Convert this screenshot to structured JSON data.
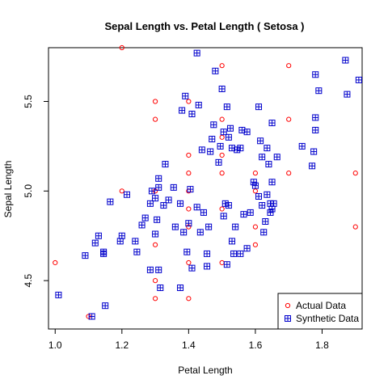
{
  "chart_data": {
    "type": "scatter",
    "title": "Sepal Length  vs.  Petal Length  ( Setosa )",
    "xlabel": "Petal Length",
    "ylabel": "Sepal Length",
    "xlim": [
      0.98,
      1.92
    ],
    "ylim": [
      4.23,
      5.8
    ],
    "xticks": [
      1.0,
      1.2,
      1.4,
      1.6,
      1.8
    ],
    "xtick_labels": [
      "1.0",
      "1.2",
      "1.4",
      "1.6",
      "1.8"
    ],
    "yticks": [
      4.5,
      5.0,
      5.5
    ],
    "ytick_labels": [
      "4.5",
      "5.0",
      "5.5"
    ],
    "grid": false,
    "legend_position": "bottom-right",
    "series": [
      {
        "name": "Actual Data",
        "marker": "circle",
        "color": "#ff0000",
        "points": [
          [
            1.0,
            4.6
          ],
          [
            1.1,
            4.3
          ],
          [
            1.2,
            5.8
          ],
          [
            1.2,
            5.0
          ],
          [
            1.3,
            5.5
          ],
          [
            1.3,
            5.4
          ],
          [
            1.3,
            5.0
          ],
          [
            1.3,
            4.7
          ],
          [
            1.3,
            4.5
          ],
          [
            1.3,
            4.4
          ],
          [
            1.4,
            5.5
          ],
          [
            1.4,
            5.2
          ],
          [
            1.4,
            5.1
          ],
          [
            1.4,
            5.0
          ],
          [
            1.4,
            4.9
          ],
          [
            1.4,
            4.8
          ],
          [
            1.4,
            4.6
          ],
          [
            1.4,
            4.4
          ],
          [
            1.5,
            5.7
          ],
          [
            1.5,
            5.4
          ],
          [
            1.5,
            5.3
          ],
          [
            1.5,
            5.2
          ],
          [
            1.5,
            5.1
          ],
          [
            1.5,
            4.9
          ],
          [
            1.5,
            4.6
          ],
          [
            1.6,
            5.1
          ],
          [
            1.6,
            5.0
          ],
          [
            1.6,
            4.8
          ],
          [
            1.6,
            4.7
          ],
          [
            1.7,
            5.7
          ],
          [
            1.7,
            5.4
          ],
          [
            1.7,
            5.1
          ],
          [
            1.9,
            5.1
          ],
          [
            1.9,
            4.8
          ]
        ]
      },
      {
        "name": "Synthetic Data",
        "marker": "boxplus",
        "color": "#0000cc",
        "points": [
          [
            1.01,
            4.42
          ],
          [
            1.09,
            4.64
          ],
          [
            1.11,
            4.3
          ],
          [
            1.12,
            4.71
          ],
          [
            1.13,
            4.75
          ],
          [
            1.145,
            4.65
          ],
          [
            1.145,
            4.66
          ],
          [
            1.15,
            4.36
          ],
          [
            1.165,
            4.94
          ],
          [
            1.195,
            4.72
          ],
          [
            1.2,
            4.75
          ],
          [
            1.215,
            4.98
          ],
          [
            1.24,
            4.72
          ],
          [
            1.245,
            4.66
          ],
          [
            1.26,
            4.81
          ],
          [
            1.27,
            4.85
          ],
          [
            1.285,
            4.56
          ],
          [
            1.285,
            4.93
          ],
          [
            1.29,
            5.0
          ],
          [
            1.3,
            4.76
          ],
          [
            1.3,
            4.96
          ],
          [
            1.305,
            4.84
          ],
          [
            1.31,
            4.56
          ],
          [
            1.31,
            5.02
          ],
          [
            1.31,
            5.07
          ],
          [
            1.315,
            4.46
          ],
          [
            1.325,
            4.92
          ],
          [
            1.33,
            5.15
          ],
          [
            1.34,
            4.95
          ],
          [
            1.355,
            5.02
          ],
          [
            1.36,
            4.8
          ],
          [
            1.375,
            4.46
          ],
          [
            1.375,
            4.93
          ],
          [
            1.38,
            5.45
          ],
          [
            1.385,
            4.77
          ],
          [
            1.39,
            5.53
          ],
          [
            1.395,
            4.66
          ],
          [
            1.4,
            4.82
          ],
          [
            1.405,
            5.01
          ],
          [
            1.41,
            5.43
          ],
          [
            1.41,
            4.57
          ],
          [
            1.425,
            4.91
          ],
          [
            1.425,
            5.77
          ],
          [
            1.43,
            5.48
          ],
          [
            1.435,
            4.77
          ],
          [
            1.44,
            5.23
          ],
          [
            1.445,
            4.88
          ],
          [
            1.455,
            4.58
          ],
          [
            1.455,
            4.65
          ],
          [
            1.46,
            4.8
          ],
          [
            1.465,
            5.22
          ],
          [
            1.47,
            5.29
          ],
          [
            1.475,
            5.37
          ],
          [
            1.48,
            5.67
          ],
          [
            1.49,
            5.16
          ],
          [
            1.495,
            5.25
          ],
          [
            1.5,
            5.57
          ],
          [
            1.505,
            4.86
          ],
          [
            1.505,
            5.33
          ],
          [
            1.51,
            4.93
          ],
          [
            1.515,
            4.59
          ],
          [
            1.515,
            5.47
          ],
          [
            1.52,
            5.3
          ],
          [
            1.52,
            4.92
          ],
          [
            1.525,
            5.35
          ],
          [
            1.53,
            4.72
          ],
          [
            1.53,
            5.24
          ],
          [
            1.535,
            4.65
          ],
          [
            1.54,
            4.8
          ],
          [
            1.545,
            5.23
          ],
          [
            1.555,
            5.24
          ],
          [
            1.555,
            4.65
          ],
          [
            1.56,
            5.34
          ],
          [
            1.565,
            4.87
          ],
          [
            1.575,
            5.33
          ],
          [
            1.575,
            4.68
          ],
          [
            1.585,
            4.88
          ],
          [
            1.595,
            5.05
          ],
          [
            1.6,
            5.03
          ],
          [
            1.61,
            5.47
          ],
          [
            1.61,
            4.97
          ],
          [
            1.615,
            5.28
          ],
          [
            1.62,
            5.19
          ],
          [
            1.62,
            4.92
          ],
          [
            1.625,
            4.77
          ],
          [
            1.63,
            4.83
          ],
          [
            1.635,
            5.24
          ],
          [
            1.635,
            4.98
          ],
          [
            1.64,
            5.15
          ],
          [
            1.645,
            4.88
          ],
          [
            1.645,
            4.93
          ],
          [
            1.65,
            4.9
          ],
          [
            1.65,
            5.38
          ],
          [
            1.65,
            5.05
          ],
          [
            1.655,
            4.93
          ],
          [
            1.665,
            5.19
          ],
          [
            1.74,
            5.25
          ],
          [
            1.77,
            5.14
          ],
          [
            1.775,
            5.22
          ],
          [
            1.78,
            5.34
          ],
          [
            1.78,
            5.41
          ],
          [
            1.78,
            5.65
          ],
          [
            1.79,
            5.56
          ],
          [
            1.87,
            5.73
          ],
          [
            1.875,
            5.54
          ],
          [
            1.91,
            5.62
          ]
        ]
      }
    ]
  }
}
